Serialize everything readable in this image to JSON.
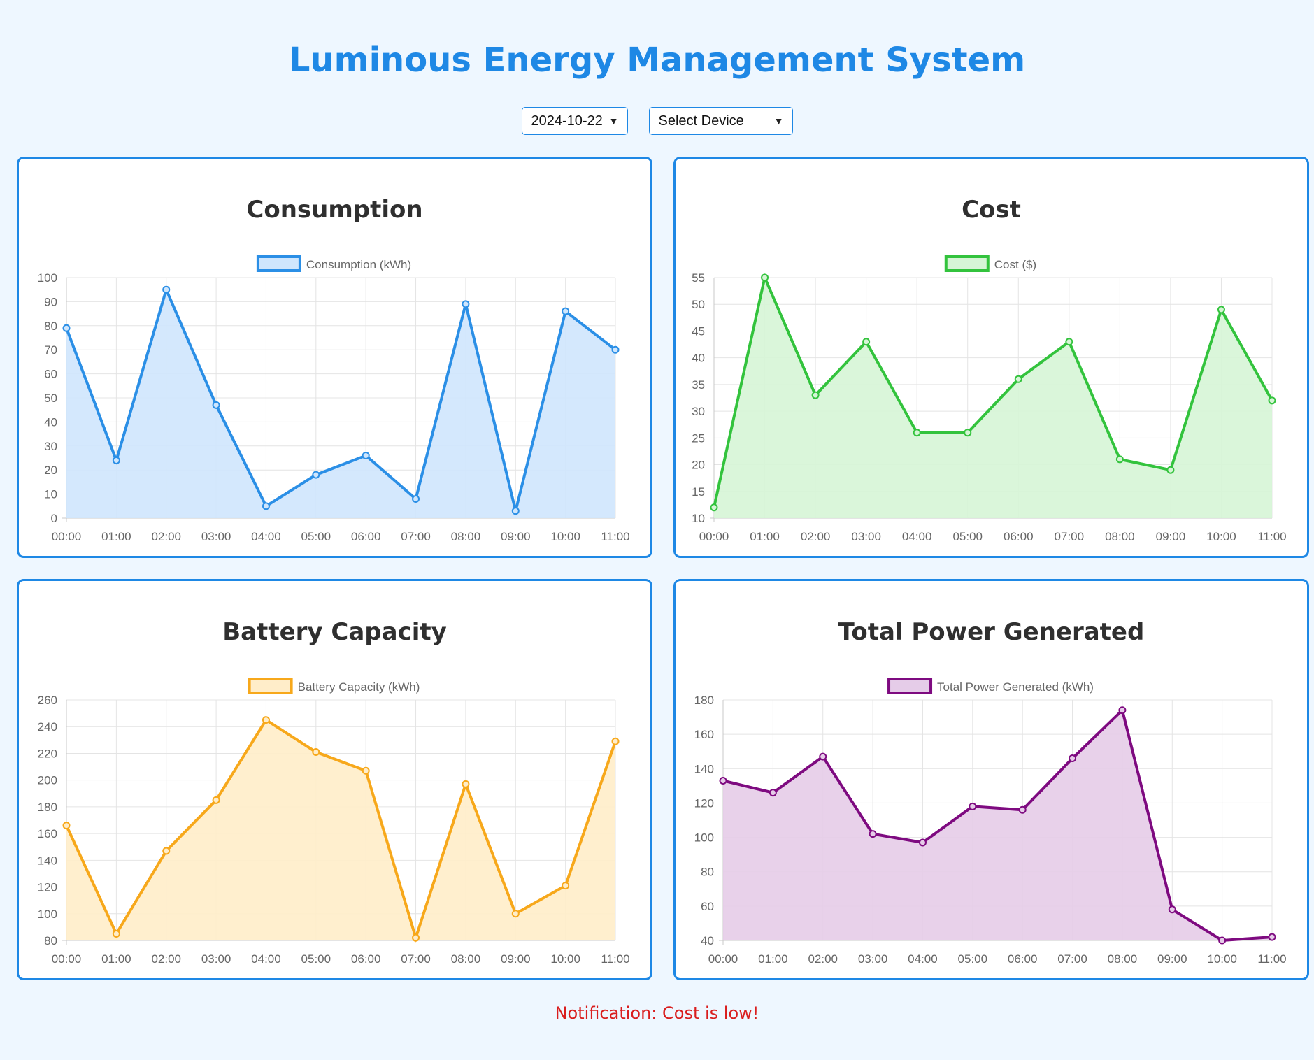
{
  "header": {
    "title": "Luminous Energy Management System"
  },
  "controls": {
    "date_value": "2024-10-22",
    "device_value": "Select Device"
  },
  "notification": "Notification: Cost is low!",
  "chart_data": [
    {
      "type": "area",
      "title": "Consumption",
      "legend": "Consumption (kWh)",
      "legend_position": "top",
      "color": "#2b8fe6",
      "fill": "#cfe6fd",
      "grid": true,
      "categories": [
        "00:00",
        "01:00",
        "02:00",
        "03:00",
        "04:00",
        "05:00",
        "06:00",
        "07:00",
        "08:00",
        "09:00",
        "10:00",
        "11:00"
      ],
      "values": [
        79,
        24,
        95,
        47,
        5,
        18,
        26,
        8,
        89,
        3,
        86,
        70
      ],
      "ylim": [
        0,
        100
      ],
      "yticks": [
        0,
        10,
        20,
        30,
        40,
        50,
        60,
        70,
        80,
        90,
        100
      ]
    },
    {
      "type": "area",
      "title": "Cost",
      "legend": "Cost ($)",
      "legend_position": "top",
      "color": "#33c33d",
      "fill": "#d6f5d6",
      "grid": true,
      "categories": [
        "00:00",
        "01:00",
        "02:00",
        "03:00",
        "04:00",
        "05:00",
        "06:00",
        "07:00",
        "08:00",
        "09:00",
        "10:00",
        "11:00"
      ],
      "values": [
        12,
        55,
        33,
        43,
        26,
        26,
        36,
        43,
        21,
        19,
        49,
        32
      ],
      "ylim": [
        10,
        55
      ],
      "yticks": [
        10,
        15,
        20,
        25,
        30,
        35,
        40,
        45,
        50,
        55
      ]
    },
    {
      "type": "area",
      "title": "Battery Capacity",
      "legend": "Battery Capacity (kWh)",
      "legend_position": "top",
      "color": "#f7a81b",
      "fill": "#ffedc9",
      "grid": true,
      "categories": [
        "00:00",
        "01:00",
        "02:00",
        "03:00",
        "04:00",
        "05:00",
        "06:00",
        "07:00",
        "08:00",
        "09:00",
        "10:00",
        "11:00"
      ],
      "values": [
        166,
        85,
        147,
        185,
        245,
        221,
        207,
        82,
        197,
        100,
        121,
        229
      ],
      "ylim": [
        80,
        260
      ],
      "yticks": [
        80,
        100,
        120,
        140,
        160,
        180,
        200,
        220,
        240,
        260
      ]
    },
    {
      "type": "area",
      "title": "Total Power Generated",
      "legend": "Total Power Generated (kWh)",
      "legend_position": "top",
      "color": "#7e0a80",
      "fill": "#e5cce8",
      "grid": true,
      "categories": [
        "00:00",
        "01:00",
        "02:00",
        "03:00",
        "04:00",
        "05:00",
        "06:00",
        "07:00",
        "08:00",
        "09:00",
        "10:00",
        "11:00"
      ],
      "values": [
        133,
        126,
        147,
        102,
        97,
        118,
        116,
        146,
        174,
        58,
        40,
        42
      ],
      "ylim": [
        40,
        180
      ],
      "yticks": [
        40,
        60,
        80,
        100,
        120,
        140,
        160,
        180
      ]
    }
  ]
}
